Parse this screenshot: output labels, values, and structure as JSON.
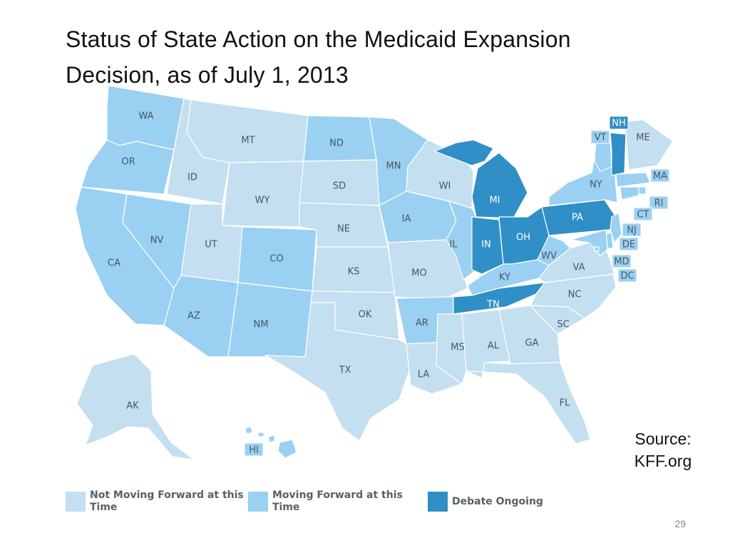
{
  "title_line1": "Status of State Action on the Medicaid Expansion",
  "title_line2": "Decision, as of July 1, 2013",
  "source_line1": "Source:",
  "source_line2": "KFF.org",
  "page_number": "29",
  "colors": {
    "not_moving": "#c3dff0",
    "moving": "#9ad0f2",
    "debate": "#2f8fc6",
    "border": "#ffffff"
  },
  "legend": [
    {
      "category": "not_moving",
      "label": "Not Moving Forward at this\nTime"
    },
    {
      "category": "moving",
      "label": "Moving Forward at this\nTime"
    },
    {
      "category": "debate",
      "label": "Debate Ongoing"
    }
  ],
  "states": [
    {
      "abbr": "WA",
      "status": "moving"
    },
    {
      "abbr": "OR",
      "status": "moving"
    },
    {
      "abbr": "CA",
      "status": "moving"
    },
    {
      "abbr": "NV",
      "status": "moving"
    },
    {
      "abbr": "ID",
      "status": "not_moving"
    },
    {
      "abbr": "MT",
      "status": "not_moving"
    },
    {
      "abbr": "WY",
      "status": "not_moving"
    },
    {
      "abbr": "UT",
      "status": "not_moving"
    },
    {
      "abbr": "AZ",
      "status": "moving"
    },
    {
      "abbr": "CO",
      "status": "moving"
    },
    {
      "abbr": "NM",
      "status": "moving"
    },
    {
      "abbr": "ND",
      "status": "moving"
    },
    {
      "abbr": "SD",
      "status": "not_moving"
    },
    {
      "abbr": "NE",
      "status": "not_moving"
    },
    {
      "abbr": "KS",
      "status": "not_moving"
    },
    {
      "abbr": "OK",
      "status": "not_moving"
    },
    {
      "abbr": "TX",
      "status": "not_moving"
    },
    {
      "abbr": "MN",
      "status": "moving"
    },
    {
      "abbr": "IA",
      "status": "moving"
    },
    {
      "abbr": "MO",
      "status": "not_moving"
    },
    {
      "abbr": "AR",
      "status": "moving"
    },
    {
      "abbr": "LA",
      "status": "not_moving"
    },
    {
      "abbr": "WI",
      "status": "not_moving"
    },
    {
      "abbr": "IL",
      "status": "moving"
    },
    {
      "abbr": "MI",
      "status": "debate"
    },
    {
      "abbr": "IN",
      "status": "debate"
    },
    {
      "abbr": "OH",
      "status": "debate"
    },
    {
      "abbr": "KY",
      "status": "moving"
    },
    {
      "abbr": "TN",
      "status": "debate"
    },
    {
      "abbr": "MS",
      "status": "not_moving"
    },
    {
      "abbr": "AL",
      "status": "not_moving"
    },
    {
      "abbr": "GA",
      "status": "not_moving"
    },
    {
      "abbr": "FL",
      "status": "not_moving"
    },
    {
      "abbr": "SC",
      "status": "not_moving"
    },
    {
      "abbr": "NC",
      "status": "not_moving"
    },
    {
      "abbr": "VA",
      "status": "not_moving"
    },
    {
      "abbr": "WV",
      "status": "moving"
    },
    {
      "abbr": "PA",
      "status": "debate"
    },
    {
      "abbr": "NY",
      "status": "moving"
    },
    {
      "abbr": "VT",
      "status": "moving"
    },
    {
      "abbr": "NH",
      "status": "debate"
    },
    {
      "abbr": "ME",
      "status": "not_moving"
    },
    {
      "abbr": "MA",
      "status": "moving"
    },
    {
      "abbr": "RI",
      "status": "moving"
    },
    {
      "abbr": "CT",
      "status": "moving"
    },
    {
      "abbr": "NJ",
      "status": "moving"
    },
    {
      "abbr": "DE",
      "status": "moving"
    },
    {
      "abbr": "MD",
      "status": "moving"
    },
    {
      "abbr": "DC",
      "status": "moving"
    },
    {
      "abbr": "AK",
      "status": "not_moving"
    },
    {
      "abbr": "HI",
      "status": "moving"
    }
  ]
}
